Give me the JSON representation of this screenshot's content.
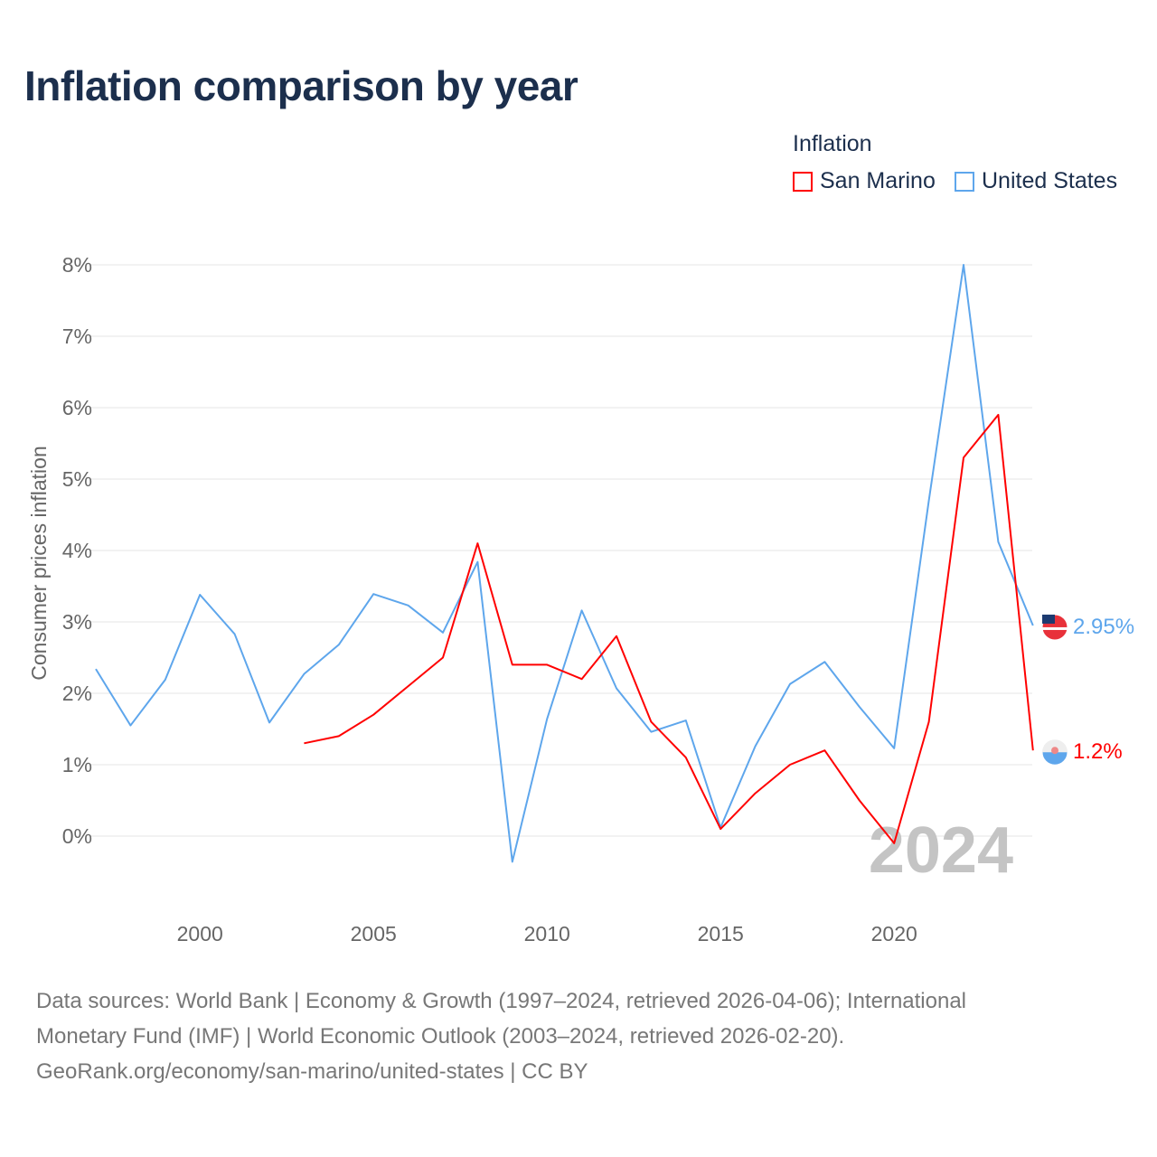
{
  "title": "Inflation comparison by year",
  "legend": {
    "title": "Inflation",
    "items": [
      "San Marino",
      "United States"
    ]
  },
  "colors": {
    "San Marino": "#ff0000",
    "United States": "#5ea6ec"
  },
  "watermark_year": "2024",
  "source_lines": [
    "Data sources: World Bank | Economy & Growth (1997–2024, retrieved 2026-04-06); International",
    "Monetary Fund (IMF) | World Economic Outlook (2003–2024, retrieved 2026-02-20).",
    "GeoRank.org/economy/san-marino/united-states | CC BY"
  ],
  "chart_data": {
    "type": "line",
    "title": "Inflation comparison by year",
    "ylabel": "Consumer prices inflation",
    "xlabel": "",
    "xlim": [
      1997,
      2024
    ],
    "ylim": [
      -1,
      8
    ],
    "yticks": [
      0,
      1,
      2,
      3,
      4,
      5,
      6,
      7,
      8
    ],
    "ytick_labels": [
      "0%",
      "1%",
      "2%",
      "3%",
      "4%",
      "5%",
      "6%",
      "7%",
      "8%"
    ],
    "xticks": [
      2000,
      2005,
      2010,
      2015,
      2020
    ],
    "xtick_labels": [
      "2000",
      "2005",
      "2010",
      "2015",
      "2020"
    ],
    "grid": true,
    "legend_position": "top-right",
    "series": [
      {
        "name": "San Marino",
        "x": [
          2003,
          2004,
          2005,
          2006,
          2007,
          2008,
          2009,
          2010,
          2011,
          2012,
          2013,
          2014,
          2015,
          2016,
          2017,
          2018,
          2019,
          2020,
          2021,
          2022,
          2023,
          2024
        ],
        "values": [
          1.3,
          1.4,
          1.7,
          2.1,
          2.5,
          4.1,
          2.4,
          2.4,
          2.2,
          2.8,
          1.6,
          1.1,
          0.1,
          0.6,
          1.0,
          1.2,
          0.5,
          -0.1,
          1.6,
          5.3,
          5.9,
          1.2
        ],
        "end_label": "1.2%"
      },
      {
        "name": "United States",
        "x": [
          1997,
          1998,
          1999,
          2000,
          2001,
          2002,
          2003,
          2004,
          2005,
          2006,
          2007,
          2008,
          2009,
          2010,
          2011,
          2012,
          2013,
          2014,
          2015,
          2016,
          2017,
          2018,
          2019,
          2020,
          2021,
          2022,
          2023,
          2024
        ],
        "values": [
          2.34,
          1.55,
          2.19,
          3.38,
          2.83,
          1.59,
          2.27,
          2.68,
          3.39,
          3.23,
          2.85,
          3.84,
          -0.36,
          1.64,
          3.16,
          2.07,
          1.46,
          1.62,
          0.12,
          1.26,
          2.13,
          2.44,
          1.81,
          1.23,
          4.7,
          8.0,
          4.12,
          2.95
        ],
        "end_label": "2.95%"
      }
    ]
  }
}
